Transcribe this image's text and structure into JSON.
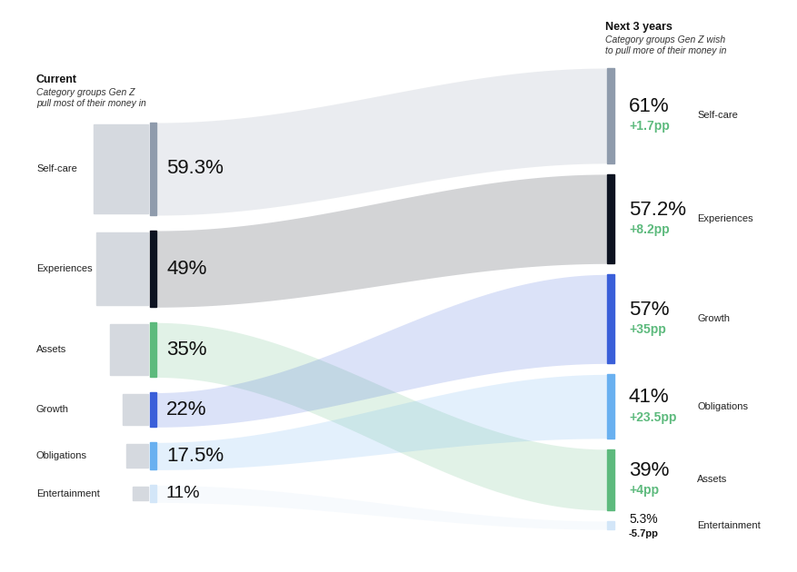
{
  "chart_data": {
    "type": "sankey",
    "categories": [
      "Self-care",
      "Experiences",
      "Assets",
      "Growth",
      "Obligations",
      "Entertainment"
    ],
    "colors": [
      "#8f9bac",
      "#0d1321",
      "#5dba7d",
      "#3a5fd9",
      "#69b0f0",
      "#d3e6f8"
    ],
    "series": [
      {
        "name": "Current",
        "subtitle": "Category groups Gen Z\npull most of their money in",
        "categories": [
          "Self-care",
          "Experiences",
          "Assets",
          "Growth",
          "Obligations",
          "Entertainment"
        ],
        "values": [
          59.3,
          49,
          35,
          22,
          17.5,
          11
        ],
        "value_labels": [
          "59.3%",
          "49%",
          "35%",
          "22%",
          "17.5%",
          "11%"
        ]
      },
      {
        "name": "Next 3 years",
        "subtitle": "Category groups Gen Z wish\nto pull more of their money in",
        "categories": [
          "Self-care",
          "Experiences",
          "Growth",
          "Obligations",
          "Assets",
          "Entertainment"
        ],
        "values": [
          61,
          57.2,
          57,
          41,
          39,
          5.3
        ],
        "value_labels": [
          "61%",
          "57.2%",
          "57%",
          "41%",
          "39%",
          "5.3%"
        ],
        "change": [
          1.7,
          8.2,
          35,
          23.5,
          4,
          -5.7
        ],
        "change_labels": [
          "+1.7pp",
          "+8.2pp",
          "+35pp",
          "+23.5pp",
          "+4pp",
          "-5.7pp"
        ]
      }
    ],
    "data_labels": true
  }
}
